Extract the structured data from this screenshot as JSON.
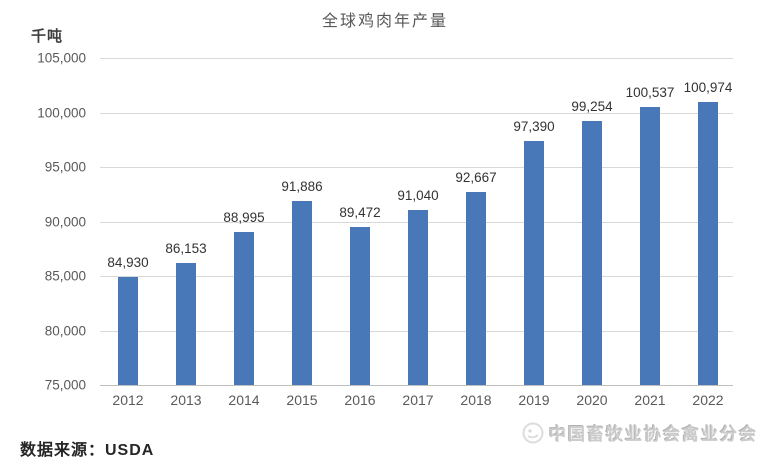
{
  "page": {
    "background_color": "#ffffff"
  },
  "chart_data": {
    "type": "bar",
    "title": "全球鸡肉年产量",
    "ylabel": "千吨",
    "xlabel": "",
    "categories": [
      "2012",
      "2013",
      "2014",
      "2015",
      "2016",
      "2017",
      "2018",
      "2019",
      "2020",
      "2021",
      "2022"
    ],
    "values": [
      84930,
      86153,
      88995,
      91886,
      89472,
      91040,
      92667,
      97390,
      99254,
      100537,
      100974
    ],
    "data_labels": [
      "84,930",
      "86,153",
      "88,995",
      "91,886",
      "89,472",
      "91,040",
      "92,667",
      "97,390",
      "99,254",
      "100,537",
      "100,974"
    ],
    "ytick_labels": [
      "75,000",
      "80,000",
      "85,000",
      "90,000",
      "95,000",
      "100,000",
      "105,000"
    ],
    "ylim": [
      75000,
      105000
    ],
    "ytick_step": 5000,
    "grid": true,
    "legend": false,
    "colors": {
      "bar": "#4878b8",
      "gridline": "#d9d9d9",
      "axis_line": "#bfbfbf",
      "title_text": "#595959",
      "axis_text": "#595959",
      "data_label_text": "#333333"
    }
  },
  "footer": {
    "source_label": "数据来源：USDA",
    "watermark_text": "中国畜牧业协会禽业分会"
  }
}
